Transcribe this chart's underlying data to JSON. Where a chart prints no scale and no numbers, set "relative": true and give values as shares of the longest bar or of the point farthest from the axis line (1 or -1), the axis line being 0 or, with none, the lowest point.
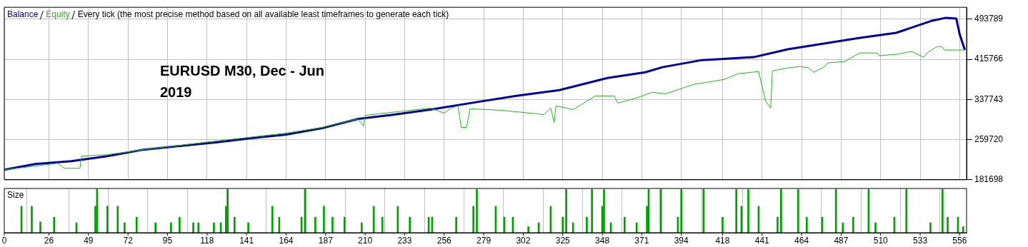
{
  "chart_data": [
    {
      "type": "line",
      "title": "Every tick (the most precise method based on all available least timeframes to generate each tick)",
      "legend": "top left",
      "grid": true,
      "tick_labels": "y",
      "annotations": [
        "EURUSD M30, Dec - Jun 2019"
      ],
      "xlim": [
        0,
        560
      ],
      "xticks": [
        0,
        26,
        49,
        72,
        95,
        118,
        141,
        164,
        187,
        210,
        233,
        256,
        279,
        302,
        325,
        348,
        371,
        394,
        418,
        441,
        464,
        487,
        510,
        533,
        556
      ],
      "ylim": [
        181698,
        517000
      ],
      "yticks": [
        181698,
        259720,
        337743,
        415766,
        493789
      ],
      "series": [
        {
          "name": "Balance",
          "color": "#0000a0",
          "x": [
            0,
            18,
            39,
            60,
            81,
            102,
            123,
            144,
            164,
            185,
            206,
            227,
            248,
            274,
            298,
            323,
            351,
            373,
            383,
            406,
            436,
            456,
            477,
            498,
            519,
            540,
            548,
            554,
            556,
            559
          ],
          "values": [
            201200,
            212350,
            217900,
            227700,
            240200,
            247200,
            254200,
            262500,
            269500,
            282000,
            300100,
            308500,
            318200,
            332200,
            344700,
            355900,
            379600,
            390700,
            400500,
            414400,
            420000,
            435300,
            446400,
            457600,
            467300,
            491000,
            496600,
            495200,
            464600,
            433900
          ]
        },
        {
          "name": "Equity",
          "color": "#22b422",
          "x": [
            0,
            18,
            31,
            35,
            44,
            45,
            60,
            81,
            123,
            164,
            185,
            206,
            209,
            210,
            248,
            256,
            260,
            264,
            266,
            269,
            271,
            289,
            306,
            314,
            318,
            320,
            321,
            331,
            344,
            355,
            357,
            369,
            377,
            385,
            401,
            419,
            427,
            439,
            443,
            446,
            447,
            456,
            463,
            468,
            471,
            477,
            479,
            489,
            498,
            508,
            509,
            519,
            528,
            535,
            537,
            543,
            546,
            547,
            559
          ],
          "values": [
            201200,
            208200,
            213700,
            204000,
            204000,
            227700,
            230500,
            240200,
            256900,
            272300,
            283400,
            300100,
            286200,
            307100,
            321000,
            311300,
            321000,
            325200,
            283400,
            283400,
            319600,
            316900,
            311300,
            308500,
            321000,
            293200,
            325200,
            318200,
            344700,
            344700,
            330800,
            341900,
            351700,
            348900,
            367000,
            376800,
            387900,
            392100,
            335000,
            321000,
            393500,
            399100,
            401900,
            399100,
            390700,
            400500,
            408800,
            411600,
            428300,
            428300,
            422800,
            425500,
            431100,
            420000,
            428300,
            440900,
            439500,
            433900,
            433900
          ]
        }
      ]
    },
    {
      "type": "bar",
      "title": "Size",
      "relative": true,
      "grid": "x",
      "tick_labels": "x",
      "xlim": [
        0,
        560
      ],
      "xticks": [
        0,
        26,
        49,
        72,
        95,
        118,
        141,
        164,
        187,
        210,
        233,
        256,
        279,
        302,
        325,
        348,
        371,
        394,
        418,
        441,
        464,
        487,
        510,
        533,
        556
      ],
      "series": [
        {
          "color": "#00a000",
          "x": [
            10,
            16,
            21,
            29,
            42,
            53,
            54,
            60,
            66,
            70,
            77,
            88,
            97,
            102,
            110,
            113,
            122,
            126,
            129,
            130,
            134,
            142,
            156,
            160,
            173,
            175,
            181,
            186,
            191,
            198,
            208,
            215,
            220,
            229,
            236,
            247,
            249,
            263,
            273,
            275,
            286,
            291,
            296,
            305,
            311,
            318,
            325,
            327,
            331,
            339,
            342,
            348,
            349,
            353,
            361,
            368,
            374,
            375,
            382,
            392,
            394,
            407,
            418,
            426,
            429,
            433,
            439,
            450,
            452,
            462,
            467,
            476,
            484,
            488,
            494,
            503,
            507,
            518,
            525,
            539,
            546,
            549,
            555,
            558
          ],
          "values": [
            0.61,
            0.61,
            0.25,
            0.36,
            0.23,
            0.61,
            1,
            0.61,
            0.61,
            0.23,
            0.36,
            0.23,
            0.23,
            0.36,
            0.23,
            0.23,
            0.23,
            0.23,
            0.61,
            1,
            0.36,
            0.23,
            0.61,
            0.36,
            0.36,
            1,
            0.36,
            0.61,
            0.36,
            0.36,
            0.23,
            0.61,
            0.36,
            0.61,
            0.36,
            0.36,
            0.36,
            0.36,
            0.61,
            1,
            0.61,
            0.36,
            0.36,
            0.14,
            0.23,
            0.61,
            0.36,
            1,
            0.23,
            0.36,
            1,
            0.61,
            1,
            0.23,
            0.36,
            0.23,
            0.61,
            1,
            1,
            0.36,
            1,
            1,
            0.36,
            1,
            0.61,
            1,
            0.61,
            0.36,
            1,
            1,
            0.36,
            0.36,
            1,
            0.23,
            0.36,
            1,
            0.23,
            0.36,
            1,
            0.23,
            1,
            0.36,
            0.36,
            0.14
          ]
        }
      ]
    }
  ]
}
